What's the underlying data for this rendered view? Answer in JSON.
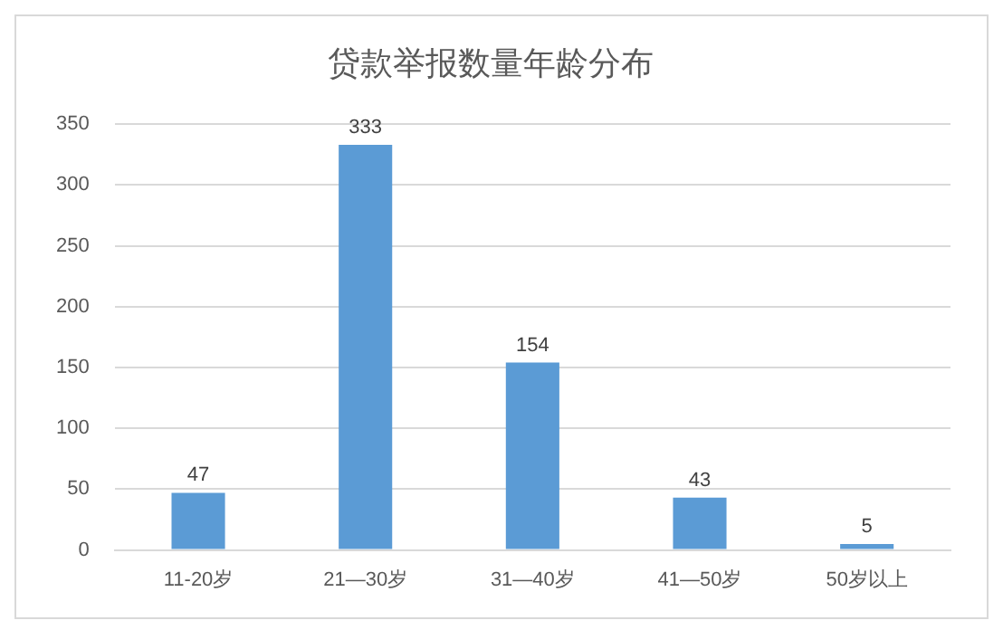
{
  "chart_data": {
    "type": "bar",
    "title": "贷款举报数量年龄分布",
    "categories": [
      "11-20岁",
      "21—30岁",
      "31—40岁",
      "41—50岁",
      "50岁以上"
    ],
    "values": [
      47,
      333,
      154,
      43,
      5
    ],
    "color": "#5b9bd5",
    "ylim": [
      0,
      350
    ],
    "yticks": [
      0,
      50,
      100,
      150,
      200,
      250,
      300,
      350
    ],
    "grid": "y",
    "data_labels": true
  }
}
